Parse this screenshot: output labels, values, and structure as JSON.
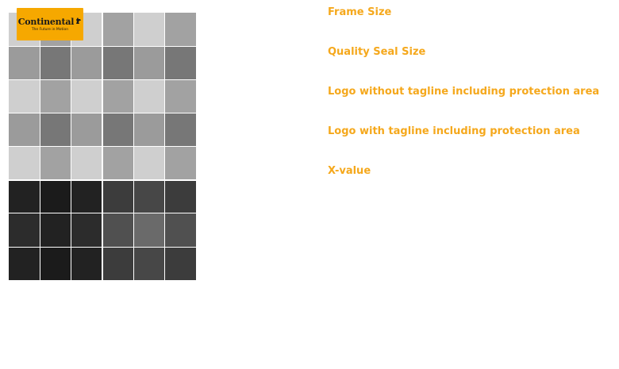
{
  "logo": {
    "wordmark": "Continental",
    "tagline": "The Future in Motion",
    "icon": "horse-icon",
    "color": "#f6a800"
  },
  "legend": {
    "items": [
      {
        "label": "Frame Size"
      },
      {
        "label": "Quality Seal Size"
      },
      {
        "label": "Logo without tagline including protection area"
      },
      {
        "label": "Logo with tagline including protection area"
      },
      {
        "label": "X-value"
      }
    ],
    "color": "#f5a81c"
  },
  "grid": {
    "top_colors": [
      [
        "#cfcfcf",
        "#a2a2a2",
        "#cfcfcf",
        "#a2a2a2",
        "#cfcfcf",
        "#a2a2a2"
      ],
      [
        "#9b9b9b",
        "#777777",
        "#9b9b9b",
        "#777777",
        "#9b9b9b",
        "#777777"
      ],
      [
        "#cfcfcf",
        "#a2a2a2",
        "#cfcfcf",
        "#a2a2a2",
        "#cfcfcf",
        "#a2a2a2"
      ],
      [
        "#9b9b9b",
        "#777777",
        "#9b9b9b",
        "#777777",
        "#9b9b9b",
        "#777777"
      ],
      [
        "#cfcfcf",
        "#a2a2a2",
        "#cfcfcf",
        "#a2a2a2",
        "#cfcfcf",
        "#a2a2a2"
      ]
    ],
    "bottom_colors": [
      [
        "#222222",
        "#1b1b1b",
        "#222222",
        "#3c3c3c",
        "#474747",
        "#3c3c3c"
      ],
      [
        "#2c2c2c",
        "#222222",
        "#2c2c2c",
        "#505050",
        "#6a6a6a",
        "#505050"
      ],
      [
        "#222222",
        "#1b1b1b",
        "#222222",
        "#3c3c3c",
        "#474747",
        "#3c3c3c"
      ]
    ]
  }
}
